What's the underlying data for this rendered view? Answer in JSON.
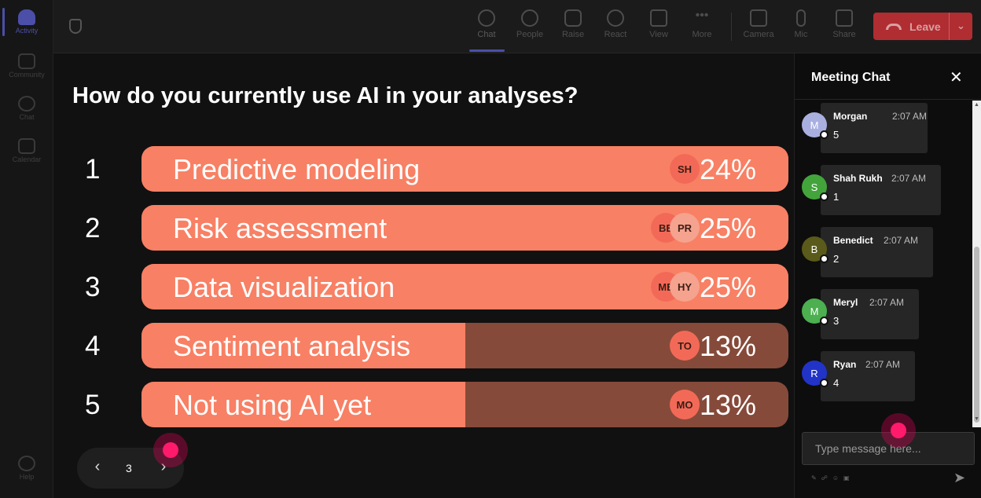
{
  "rail": {
    "items": [
      {
        "label": "Activity",
        "icon": "bell-icon",
        "active": true
      },
      {
        "label": "Community",
        "icon": "community-icon"
      },
      {
        "label": "Chat",
        "icon": "chat-icon"
      },
      {
        "label": "Calendar",
        "icon": "calendar-icon"
      }
    ],
    "help": {
      "label": "Help",
      "icon": "help-icon"
    }
  },
  "toolbar": {
    "tools": [
      {
        "label": "Chat",
        "icon": "chat-icon",
        "active": true
      },
      {
        "label": "People",
        "icon": "people-icon"
      },
      {
        "label": "Raise",
        "icon": "hand-icon"
      },
      {
        "label": "React",
        "icon": "smiley-icon"
      },
      {
        "label": "View",
        "icon": "grid-icon"
      },
      {
        "label": "More",
        "icon": "ellipsis-icon"
      },
      {
        "label": "Camera",
        "icon": "camera-off-icon"
      },
      {
        "label": "Mic",
        "icon": "mic-icon"
      },
      {
        "label": "Share",
        "icon": "share-icon"
      }
    ],
    "leave_label": "Leave",
    "leave_color": "#b02d32"
  },
  "poll": {
    "question": "How do you currently use AI in your analyses?",
    "options": [
      {
        "num": "1",
        "label": "Predictive modeling",
        "pct": "24%",
        "fill": 1.0,
        "avatars": [
          "SH"
        ]
      },
      {
        "num": "2",
        "label": "Risk assessment",
        "pct": "25%",
        "fill": 1.0,
        "avatars": [
          "BE",
          "PR"
        ]
      },
      {
        "num": "3",
        "label": "Data visualization",
        "pct": "25%",
        "fill": 1.0,
        "avatars": [
          "ME",
          "HY"
        ]
      },
      {
        "num": "4",
        "label": "Sentiment analysis",
        "pct": "13%",
        "fill": 0.5,
        "avatars": [
          "TO"
        ]
      },
      {
        "num": "5",
        "label": "Not using AI yet",
        "pct": "13%",
        "fill": 0.5,
        "avatars": [
          "MO"
        ]
      }
    ],
    "bar_color": "#f88064",
    "bar_track_color": "#864a3a"
  },
  "pager": {
    "page": "3",
    "prev_icon": "chevron-left-icon",
    "next_icon": "chevron-right-icon"
  },
  "chat": {
    "title": "Meeting Chat",
    "close_icon": "close-icon",
    "messages": [
      {
        "initial": "M",
        "sender": "Morgan",
        "time": "2:07 AM",
        "text": "5",
        "avatar_color": "#a9b0e0"
      },
      {
        "initial": "S",
        "sender": "Shah Rukh",
        "time": "2:07 AM",
        "text": "1",
        "avatar_color": "#43a43c"
      },
      {
        "initial": "B",
        "sender": "Benedict",
        "time": "2:07 AM",
        "text": "2",
        "avatar_color": "#5a5a1a"
      },
      {
        "initial": "M",
        "sender": "Meryl",
        "time": "2:07 AM",
        "text": "3",
        "avatar_color": "#4caf50"
      },
      {
        "initial": "R",
        "sender": "Ryan",
        "time": "2:07 AM",
        "text": "4",
        "avatar_color": "#2233c8"
      }
    ],
    "input_placeholder": "Type message here...",
    "send_icon": "send-icon"
  }
}
